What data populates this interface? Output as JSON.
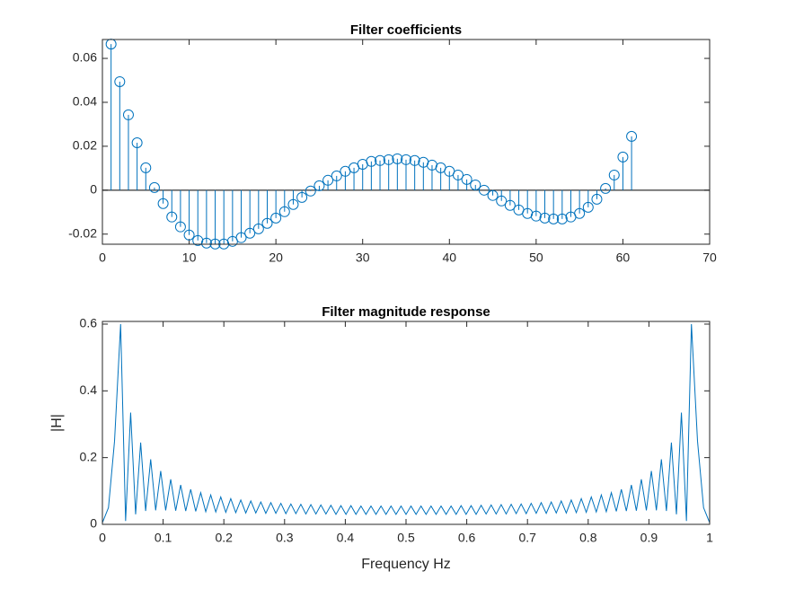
{
  "chart_data": [
    {
      "type": "stem",
      "title": "Filter coefficients",
      "color": "#0072BD",
      "x": [
        1,
        2,
        3,
        4,
        5,
        6,
        7,
        8,
        9,
        10,
        11,
        12,
        13,
        14,
        15,
        16,
        17,
        18,
        19,
        20,
        21,
        22,
        23,
        24,
        25,
        26,
        27,
        28,
        29,
        30,
        31,
        32,
        33,
        34,
        35,
        36,
        37,
        38,
        39,
        40,
        41,
        42,
        43,
        44,
        45,
        46,
        47,
        48,
        49,
        50,
        51,
        52,
        53,
        54,
        55,
        56,
        57,
        58,
        59,
        60,
        61
      ],
      "values": [
        0.0665,
        0.0494,
        0.0343,
        0.0216,
        0.0102,
        0.0012,
        -0.0061,
        -0.0122,
        -0.0167,
        -0.0204,
        -0.0229,
        -0.0241,
        -0.0245,
        -0.0245,
        -0.0233,
        -0.0216,
        -0.0196,
        -0.0176,
        -0.0151,
        -0.0127,
        -0.0098,
        -0.0065,
        -0.0033,
        -0.0004,
        0.002,
        0.0045,
        0.0065,
        0.0086,
        0.0102,
        0.0118,
        0.0131,
        0.0135,
        0.0139,
        0.0143,
        0.0139,
        0.0135,
        0.0127,
        0.0114,
        0.0102,
        0.0086,
        0.0069,
        0.0049,
        0.0024,
        0,
        -0.0024,
        -0.0049,
        -0.0069,
        -0.009,
        -0.0106,
        -0.0118,
        -0.0127,
        -0.0131,
        -0.0131,
        -0.0122,
        -0.0106,
        -0.0078,
        -0.0041,
        0.0008,
        0.0069,
        0.0151,
        0.0245
      ],
      "xlim": [
        0,
        70
      ],
      "xticks": [
        0,
        10,
        20,
        30,
        40,
        50,
        60,
        70
      ],
      "ylim": [
        -0.0246,
        0.0686
      ],
      "yticks": [
        -0.02,
        0,
        0.02,
        0.04,
        0.06
      ]
    },
    {
      "type": "line",
      "title": "Filter magnitude response",
      "xlabel": "Frequency Hz",
      "ylabel": "|H|",
      "color": "#0072BD",
      "x": [
        0,
        0.01,
        0.02,
        0.03,
        0.0382,
        0.0465,
        0.0547,
        0.063,
        0.0712,
        0.0795,
        0.0877,
        0.096,
        0.1042,
        0.1125,
        0.1207,
        0.1289,
        0.1372,
        0.1454,
        0.1537,
        0.1619,
        0.1702,
        0.1784,
        0.1867,
        0.1949,
        0.2032,
        0.2114,
        0.2196,
        0.2279,
        0.2361,
        0.2444,
        0.2526,
        0.2609,
        0.2691,
        0.2774,
        0.2856,
        0.2939,
        0.3021,
        0.3104,
        0.3186,
        0.3268,
        0.3351,
        0.3433,
        0.3516,
        0.3598,
        0.3681,
        0.3763,
        0.3846,
        0.3928,
        0.4011,
        0.4093,
        0.4175,
        0.4258,
        0.434,
        0.4423,
        0.4505,
        0.4588,
        0.467,
        0.4753,
        0.4835,
        0.4918,
        0.5,
        0.5082,
        0.5165,
        0.5247,
        0.533,
        0.5412,
        0.5495,
        0.5577,
        0.566,
        0.5742,
        0.5825,
        0.5907,
        0.5989,
        0.6072,
        0.6154,
        0.6237,
        0.6319,
        0.6402,
        0.6484,
        0.6567,
        0.6649,
        0.6732,
        0.6814,
        0.6896,
        0.6979,
        0.7061,
        0.7144,
        0.7226,
        0.7309,
        0.7391,
        0.7474,
        0.7556,
        0.7639,
        0.7721,
        0.7804,
        0.7886,
        0.7968,
        0.8051,
        0.8133,
        0.8216,
        0.8298,
        0.8381,
        0.8463,
        0.8546,
        0.8628,
        0.8711,
        0.8793,
        0.8875,
        0.8958,
        0.904,
        0.9123,
        0.9205,
        0.9288,
        0.937,
        0.9453,
        0.9535,
        0.9618,
        0.97,
        0.98,
        0.99,
        1
      ],
      "values": [
        0.005,
        0.05,
        0.25,
        0.6,
        0.01,
        0.335,
        0.03,
        0.245,
        0.04,
        0.195,
        0.042,
        0.16,
        0.042,
        0.135,
        0.041,
        0.118,
        0.04,
        0.105,
        0.039,
        0.095,
        0.038,
        0.088,
        0.037,
        0.082,
        0.036,
        0.077,
        0.035,
        0.073,
        0.034,
        0.07,
        0.034,
        0.067,
        0.033,
        0.065,
        0.033,
        0.063,
        0.032,
        0.061,
        0.032,
        0.06,
        0.031,
        0.059,
        0.031,
        0.058,
        0.031,
        0.057,
        0.03,
        0.056,
        0.03,
        0.056,
        0.03,
        0.055,
        0.03,
        0.055,
        0.03,
        0.055,
        0.03,
        0.055,
        0.03,
        0.055,
        0.03,
        0.055,
        0.03,
        0.055,
        0.03,
        0.055,
        0.03,
        0.055,
        0.03,
        0.055,
        0.03,
        0.056,
        0.03,
        0.056,
        0.03,
        0.057,
        0.031,
        0.058,
        0.031,
        0.059,
        0.031,
        0.06,
        0.032,
        0.061,
        0.032,
        0.063,
        0.033,
        0.065,
        0.033,
        0.067,
        0.034,
        0.07,
        0.034,
        0.073,
        0.035,
        0.077,
        0.036,
        0.082,
        0.037,
        0.088,
        0.038,
        0.095,
        0.039,
        0.105,
        0.04,
        0.118,
        0.041,
        0.135,
        0.042,
        0.16,
        0.042,
        0.195,
        0.04,
        0.245,
        0.03,
        0.335,
        0.01,
        0.6,
        0.25,
        0.05,
        0.005
      ],
      "xlim": [
        0,
        1
      ],
      "xticks": [
        0,
        0.1,
        0.2,
        0.3,
        0.4,
        0.5,
        0.6,
        0.7,
        0.8,
        0.9,
        1
      ],
      "ylim": [
        0,
        0.608
      ],
      "yticks": [
        0,
        0.2,
        0.4,
        0.6
      ]
    }
  ]
}
